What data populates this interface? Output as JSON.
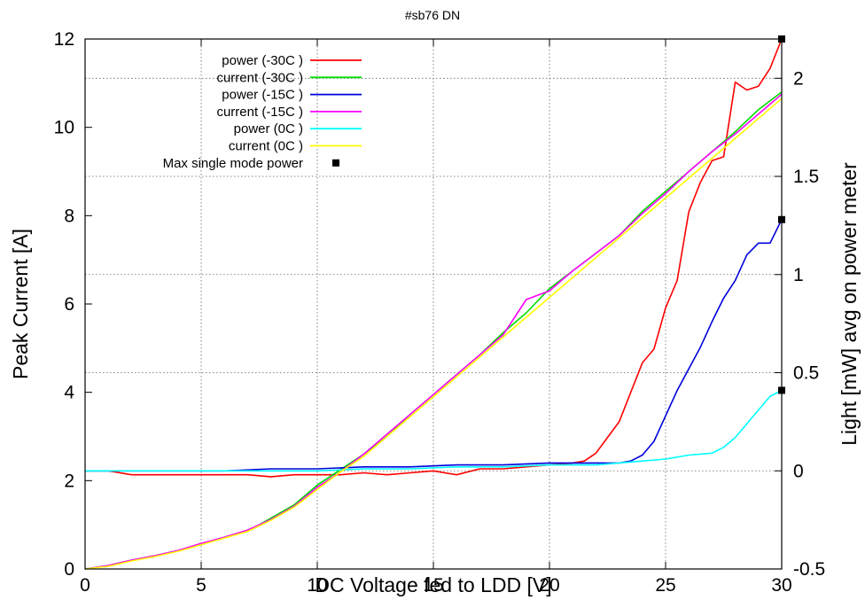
{
  "chart_data": {
    "type": "line",
    "title": "#sb76 DN",
    "xlabel": "DC Voltage fed to LDD [V]",
    "ylabel": "Peak Current [A]",
    "y2label": "Light [mW] avg on power meter",
    "xlim": [
      0,
      30
    ],
    "ylim": [
      0,
      12
    ],
    "y2lim": [
      -0.5,
      2.2
    ],
    "x_ticks": [
      "0",
      "5",
      "10",
      "15",
      "20",
      "25",
      "30"
    ],
    "y_ticks": [
      "0",
      "2",
      "4",
      "6",
      "8",
      "10",
      "12"
    ],
    "y2_ticks": [
      "-0.5",
      "0",
      "0.5",
      "1",
      "1.5",
      "2"
    ],
    "grid": true,
    "legend_position": "top-left",
    "series": [
      {
        "name": "power (-30C )",
        "axis": "y2",
        "color": "#ff0000",
        "x": [
          0,
          1,
          2,
          3,
          4,
          5,
          6,
          7,
          8,
          9,
          10,
          11,
          12,
          13,
          14,
          15,
          16,
          17,
          18,
          19,
          20,
          21,
          21.5,
          22,
          22.5,
          23,
          23.5,
          24,
          24.5,
          25,
          25.5,
          26,
          26.5,
          27,
          27.5,
          28,
          28.5,
          29,
          29.5,
          30
        ],
        "y": [
          0,
          0,
          -0.02,
          -0.02,
          -0.02,
          -0.02,
          -0.02,
          -0.02,
          -0.03,
          -0.02,
          -0.02,
          -0.02,
          -0.01,
          -0.02,
          -0.01,
          0,
          -0.02,
          0.01,
          0.01,
          0.02,
          0.03,
          0.04,
          0.05,
          0.09,
          0.17,
          0.25,
          0.4,
          0.55,
          0.62,
          0.83,
          0.97,
          1.32,
          1.47,
          1.58,
          1.6,
          1.98,
          1.94,
          1.96,
          2.05,
          2.2
        ]
      },
      {
        "name": "current (-30C )",
        "axis": "y",
        "color": "#00dd00",
        "x": [
          0,
          1,
          2,
          3,
          4,
          5,
          6,
          7,
          8,
          9,
          10,
          11,
          12,
          13,
          14,
          15,
          16,
          17,
          18,
          19,
          20,
          21,
          22,
          23,
          24,
          25,
          26,
          27,
          28,
          29,
          30
        ],
        "y": [
          0,
          0.08,
          0.2,
          0.3,
          0.42,
          0.55,
          0.72,
          0.85,
          1.15,
          1.45,
          1.9,
          2.25,
          2.6,
          3.0,
          3.5,
          3.95,
          4.4,
          4.85,
          5.35,
          5.8,
          6.35,
          6.75,
          7.15,
          7.55,
          8.1,
          8.55,
          9.0,
          9.45,
          9.9,
          10.4,
          10.8
        ]
      },
      {
        "name": "power (-15C )",
        "axis": "y2",
        "color": "#0000dd",
        "x": [
          0,
          2,
          4,
          6,
          8,
          10,
          12,
          14,
          16,
          18,
          20,
          22,
          23,
          23.5,
          24,
          24.5,
          25,
          25.5,
          26,
          26.5,
          27,
          27.5,
          28,
          28.5,
          29,
          29.5,
          30
        ],
        "y": [
          0,
          0,
          0,
          0,
          0.01,
          0.01,
          0.02,
          0.02,
          0.03,
          0.03,
          0.04,
          0.04,
          0.04,
          0.05,
          0.08,
          0.15,
          0.28,
          0.41,
          0.52,
          0.63,
          0.76,
          0.88,
          0.97,
          1.1,
          1.16,
          1.16,
          1.28
        ]
      },
      {
        "name": "current (-15C )",
        "axis": "y",
        "color": "#ff00ff",
        "x": [
          0,
          1,
          2,
          3,
          4,
          5,
          6,
          7,
          8,
          9,
          10,
          11,
          12,
          13,
          14,
          15,
          16,
          17,
          18,
          19,
          20,
          21,
          22,
          23,
          24,
          25,
          26,
          27,
          28,
          29,
          30
        ],
        "y": [
          0,
          0.08,
          0.2,
          0.3,
          0.42,
          0.58,
          0.72,
          0.88,
          1.12,
          1.42,
          1.85,
          2.2,
          2.6,
          3.05,
          3.5,
          3.95,
          4.4,
          4.85,
          5.3,
          6.1,
          6.3,
          6.75,
          7.15,
          7.55,
          8.05,
          8.5,
          9.0,
          9.45,
          9.85,
          10.3,
          10.75
        ]
      },
      {
        "name": "power (0C )",
        "axis": "y2",
        "color": "#00ffff",
        "x": [
          0,
          2,
          4,
          6,
          8,
          10,
          12,
          14,
          16,
          18,
          20,
          22,
          24,
          25,
          26,
          27,
          27.5,
          28,
          28.5,
          29,
          29.5,
          30
        ],
        "y": [
          0,
          0,
          0,
          0,
          0,
          0,
          0.01,
          0.01,
          0.02,
          0.02,
          0.03,
          0.03,
          0.05,
          0.06,
          0.08,
          0.09,
          0.12,
          0.17,
          0.24,
          0.31,
          0.38,
          0.41
        ]
      },
      {
        "name": "current (0C )",
        "axis": "y",
        "color": "#ffff00",
        "x": [
          0,
          1,
          2,
          3,
          4,
          5,
          6,
          7,
          8,
          9,
          10,
          11,
          12,
          13,
          14,
          15,
          16,
          17,
          18,
          19,
          20,
          21,
          22,
          23,
          24,
          25,
          26,
          27,
          28,
          29,
          30
        ],
        "y": [
          0,
          0.06,
          0.18,
          0.28,
          0.4,
          0.55,
          0.7,
          0.85,
          1.1,
          1.4,
          1.8,
          2.2,
          2.55,
          3.0,
          3.45,
          3.9,
          4.35,
          4.8,
          5.25,
          5.7,
          6.15,
          6.6,
          7.05,
          7.5,
          7.95,
          8.4,
          8.85,
          9.3,
          9.75,
          10.2,
          10.65
        ]
      },
      {
        "name": "Max single mode power",
        "axis": "y2",
        "color": "#000000",
        "marker": "square",
        "x": [
          30,
          30,
          30
        ],
        "y": [
          2.2,
          1.28,
          0.41
        ]
      }
    ]
  }
}
